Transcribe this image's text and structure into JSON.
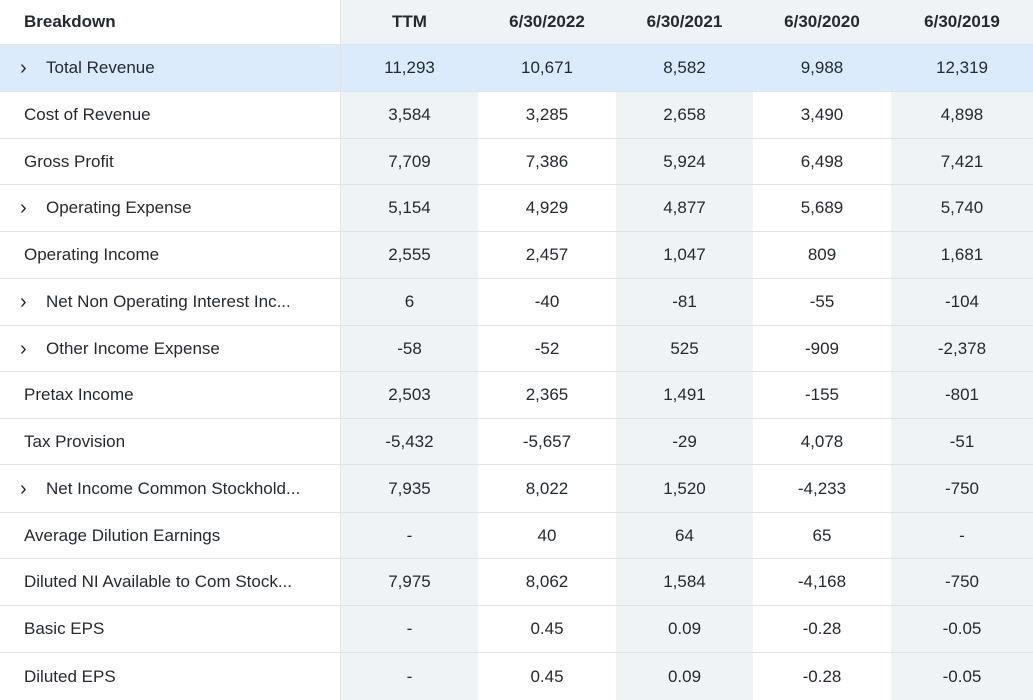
{
  "table": {
    "headers": [
      "Breakdown",
      "TTM",
      "6/30/2022",
      "6/30/2021",
      "6/30/2020",
      "6/30/2019"
    ],
    "rows": [
      {
        "label": "Total Revenue",
        "values": [
          "11,293",
          "10,671",
          "8,582",
          "9,988",
          "12,319"
        ]
      },
      {
        "label": "Cost of Revenue",
        "values": [
          "3,584",
          "3,285",
          "2,658",
          "3,490",
          "4,898"
        ]
      },
      {
        "label": "Gross Profit",
        "values": [
          "7,709",
          "7,386",
          "5,924",
          "6,498",
          "7,421"
        ]
      },
      {
        "label": "Operating Expense",
        "values": [
          "5,154",
          "4,929",
          "4,877",
          "5,689",
          "5,740"
        ]
      },
      {
        "label": "Operating Income",
        "values": [
          "2,555",
          "2,457",
          "1,047",
          "809",
          "1,681"
        ]
      },
      {
        "label": "Net Non Operating Interest Inc...",
        "values": [
          "6",
          "-40",
          "-81",
          "-55",
          "-104"
        ]
      },
      {
        "label": "Other Income Expense",
        "values": [
          "-58",
          "-52",
          "525",
          "-909",
          "-2,378"
        ]
      },
      {
        "label": "Pretax Income",
        "values": [
          "2,503",
          "2,365",
          "1,491",
          "-155",
          "-801"
        ]
      },
      {
        "label": "Tax Provision",
        "values": [
          "-5,432",
          "-5,657",
          "-29",
          "4,078",
          "-51"
        ]
      },
      {
        "label": "Net Income Common Stockhold...",
        "values": [
          "7,935",
          "8,022",
          "1,520",
          "-4,233",
          "-750"
        ]
      },
      {
        "label": "Average Dilution Earnings",
        "values": [
          "-",
          "40",
          "64",
          "65",
          "-"
        ]
      },
      {
        "label": "Diluted NI Available to Com Stock...",
        "values": [
          "7,975",
          "8,062",
          "1,584",
          "-4,168",
          "-750"
        ]
      },
      {
        "label": "Basic EPS",
        "values": [
          "-",
          "0.45",
          "0.09",
          "-0.28",
          "-0.05"
        ]
      },
      {
        "label": "Diluted EPS",
        "values": [
          "-",
          "0.45",
          "0.09",
          "-0.28",
          "-0.05"
        ]
      }
    ]
  },
  "icons": {
    "expand": "chevron-right-icon"
  },
  "colors": {
    "header_shade": "#f0f3f5",
    "highlight_row": "#dcebfb",
    "border": "#e0e4e9",
    "text": "#232a31"
  }
}
